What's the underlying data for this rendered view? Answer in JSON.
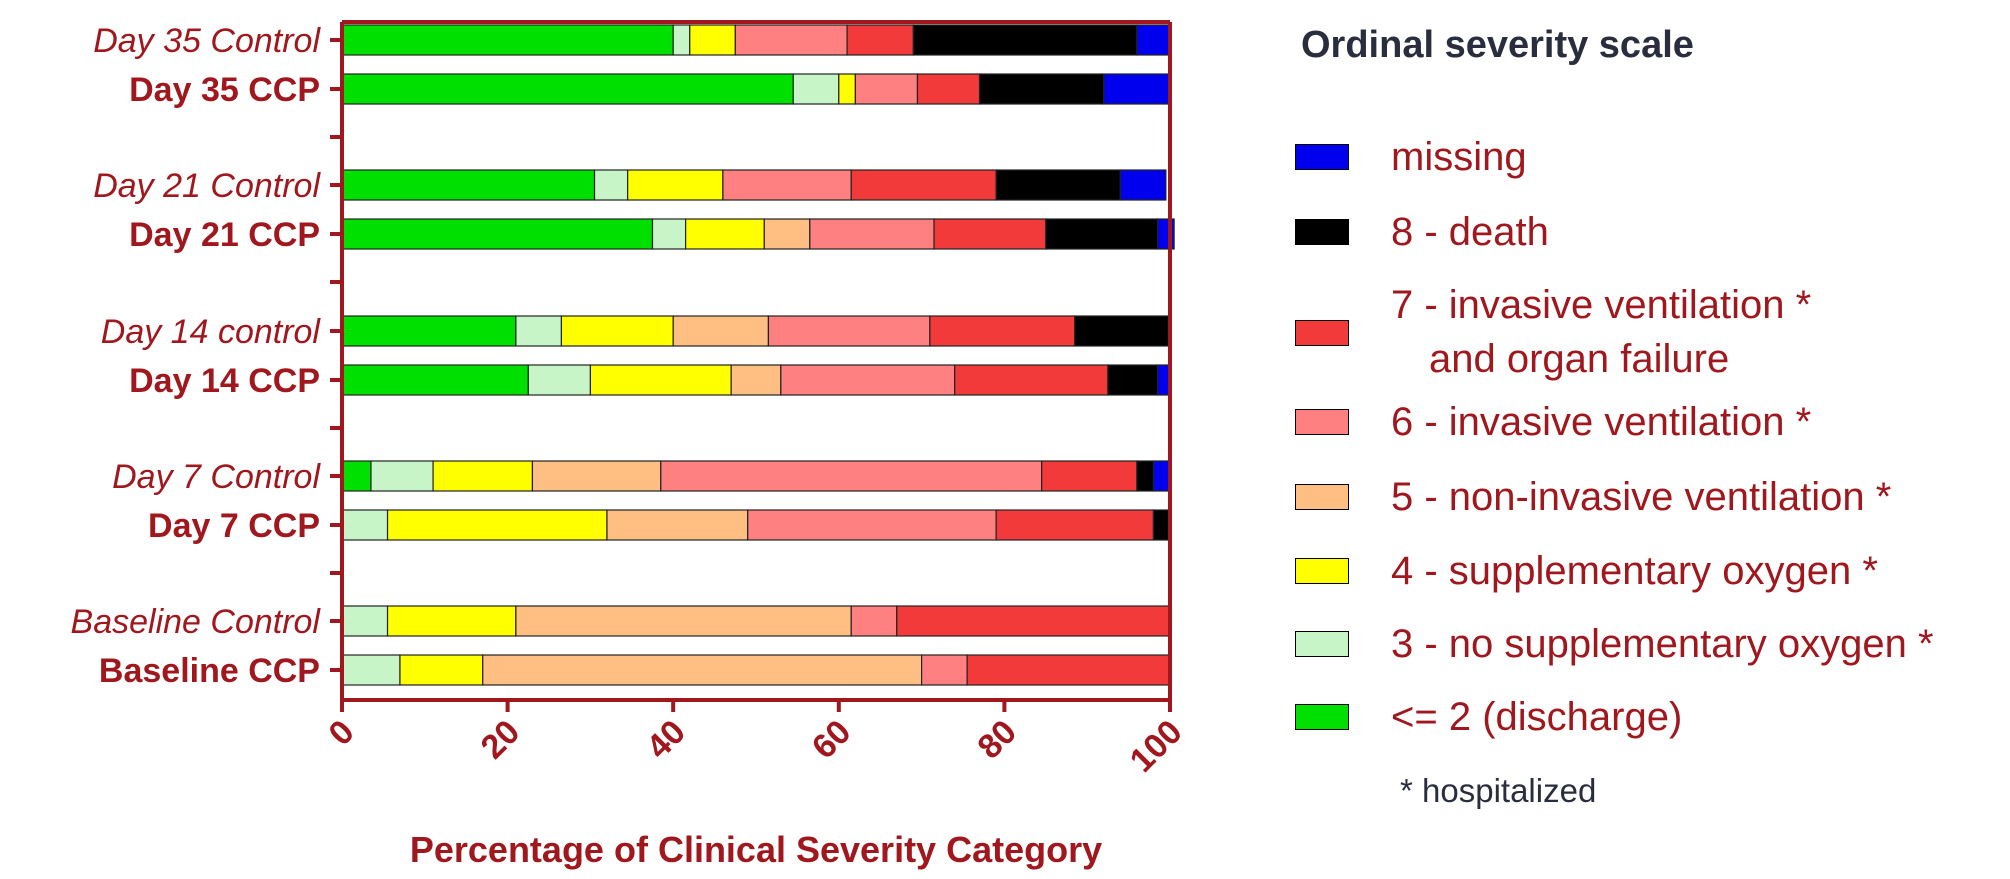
{
  "chart_data": {
    "type": "bar",
    "orientation": "horizontal",
    "stacked": true,
    "xlabel": "Percentage of Clinical Severity Category",
    "xlim": [
      0,
      100
    ],
    "xticks": [
      "0",
      "20",
      "40",
      "60",
      "80",
      "100"
    ],
    "categories": [
      "Day 35 Control",
      "Day 35 CCP",
      "Day 21 Control",
      "Day 21 CCP",
      "Day 14 control",
      "Day 14 CCP",
      "Day 7 Control",
      "Day 7 CCP",
      "Baseline Control",
      "Baseline CCP"
    ],
    "category_styles": [
      "italic",
      "bold",
      "italic",
      "bold",
      "italic",
      "bold",
      "italic",
      "bold",
      "italic",
      "bold"
    ],
    "group_break_after": [
      1,
      3,
      5,
      7
    ],
    "series": [
      {
        "name": "<= 2 (discharge)",
        "color": "#00e000",
        "values": [
          40.0,
          54.5,
          30.5,
          37.5,
          21.0,
          22.5,
          3.5,
          0.0,
          0.0,
          0.0
        ]
      },
      {
        "name": "3 - no supplementary oxygen *",
        "color": "#c8f5c8",
        "values": [
          2.0,
          5.5,
          4.0,
          4.0,
          5.5,
          7.5,
          7.5,
          5.5,
          5.5,
          7.0
        ]
      },
      {
        "name": "4 - supplementary oxygen *",
        "color": "#ffff00",
        "values": [
          5.5,
          2.0,
          11.5,
          9.5,
          13.5,
          17.0,
          12.0,
          26.5,
          15.5,
          10.0
        ]
      },
      {
        "name": "5 - non-invasive ventilation *",
        "color": "#ffbe82",
        "values": [
          0.0,
          0.0,
          0.0,
          5.5,
          11.5,
          6.0,
          15.5,
          17.0,
          40.5,
          53.0
        ]
      },
      {
        "name": "6 - invasive ventilation *",
        "color": "#ff8080",
        "values": [
          13.5,
          7.5,
          15.5,
          15.0,
          19.5,
          21.0,
          46.0,
          30.0,
          5.5,
          5.5
        ]
      },
      {
        "name": "7 - invasive ventilation * and organ failure",
        "color": "#f23a3a",
        "values": [
          8.0,
          7.5,
          17.5,
          13.5,
          17.5,
          18.5,
          11.5,
          19.0,
          33.0,
          24.5
        ]
      },
      {
        "name": "8 - death",
        "color": "#000000",
        "values": [
          27.0,
          15.0,
          15.0,
          13.5,
          11.5,
          6.0,
          2.0,
          2.0,
          0.0,
          0.0
        ]
      },
      {
        "name": "missing",
        "color": "#0000ee",
        "values": [
          4.0,
          8.0,
          5.5,
          2.0,
          0.0,
          1.5,
          2.0,
          0.0,
          0.0,
          0.0
        ]
      }
    ],
    "grid": false
  },
  "legend": {
    "title": "Ordinal severity scale",
    "items": [
      {
        "label": "missing",
        "color": "#0000ee"
      },
      {
        "label": "8 - death",
        "color": "#000000"
      },
      {
        "label": "7 - invasive ventilation *",
        "label2": "and organ failure",
        "color": "#f23a3a"
      },
      {
        "label": "6 - invasive ventilation *",
        "color": "#ff8080"
      },
      {
        "label": "5 - non-invasive ventilation *",
        "color": "#ffbe82"
      },
      {
        "label": "4 - supplementary oxygen *",
        "color": "#ffff00"
      },
      {
        "label": "3 - no supplementary oxygen *",
        "color": "#c8f5c8"
      },
      {
        "label": "<= 2 (discharge)",
        "color": "#00e000"
      }
    ],
    "note": "* hospitalized"
  },
  "colors": {
    "axis": "#a0181e",
    "text": "#a0181e",
    "title": "#2a2d3e"
  }
}
